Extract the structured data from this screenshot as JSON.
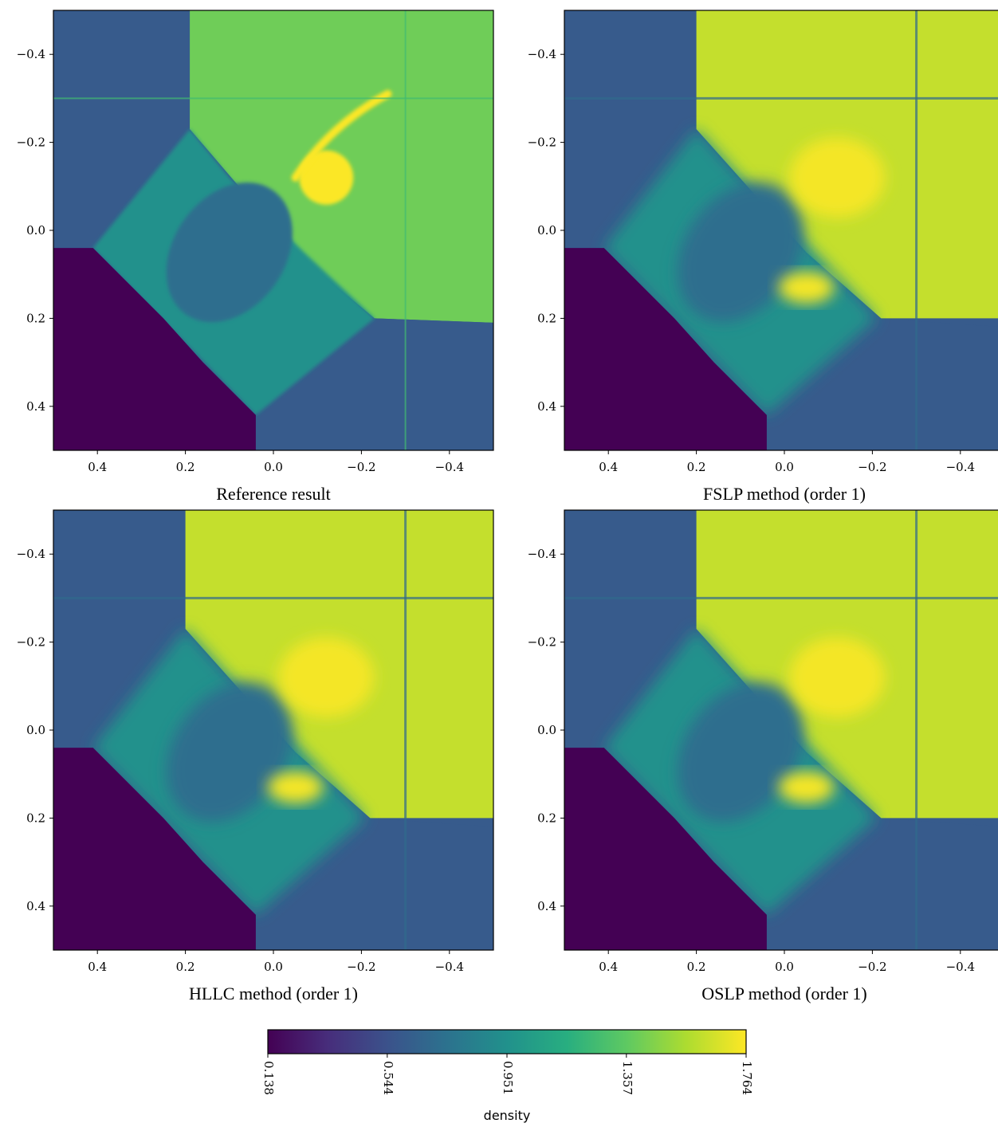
{
  "chart_data": [
    {
      "type": "heatmap",
      "title": "Reference result",
      "xlim": [
        0.5,
        -0.5
      ],
      "ylim": [
        0.5,
        -0.5
      ],
      "x_ticks": [
        "0.4",
        "0.2",
        "0.0",
        "−0.2",
        "−0.4"
      ],
      "y_ticks": [
        "−0.4",
        "−0.2",
        "0.0",
        "0.2",
        "0.4"
      ],
      "regions": [
        {
          "name": "upper-left",
          "density": 0.6
        },
        {
          "name": "upper-right",
          "density": 1.4
        },
        {
          "name": "lower-left",
          "density": 0.138
        },
        {
          "name": "lower-right",
          "density": 0.6
        },
        {
          "name": "center",
          "density": 0.95
        },
        {
          "name": "peak",
          "density": 1.76
        }
      ]
    },
    {
      "type": "heatmap",
      "title": "FSLP method (order 1)",
      "xlim": [
        0.5,
        -0.5
      ],
      "ylim": [
        0.5,
        -0.5
      ],
      "x_ticks": [
        "0.4",
        "0.2",
        "0.0",
        "−0.2",
        "−0.4"
      ],
      "y_ticks": [
        "−0.4",
        "−0.2",
        "0.0",
        "0.2",
        "0.4"
      ],
      "regions": [
        {
          "name": "upper-left",
          "density": 0.6
        },
        {
          "name": "upper-right",
          "density": 1.62
        },
        {
          "name": "lower-left",
          "density": 0.138
        },
        {
          "name": "lower-right",
          "density": 0.6
        },
        {
          "name": "center",
          "density": 0.95
        },
        {
          "name": "peak",
          "density": 1.74
        }
      ]
    },
    {
      "type": "heatmap",
      "title": "HLLC method (order 1)",
      "xlim": [
        0.5,
        -0.5
      ],
      "ylim": [
        0.5,
        -0.5
      ],
      "x_ticks": [
        "0.4",
        "0.2",
        "0.0",
        "−0.2",
        "−0.4"
      ],
      "y_ticks": [
        "−0.4",
        "−0.2",
        "0.0",
        "0.2",
        "0.4"
      ],
      "regions": [
        {
          "name": "upper-left",
          "density": 0.6
        },
        {
          "name": "upper-right",
          "density": 1.62
        },
        {
          "name": "lower-left",
          "density": 0.138
        },
        {
          "name": "lower-right",
          "density": 0.6
        },
        {
          "name": "center",
          "density": 0.95
        },
        {
          "name": "peak",
          "density": 1.74
        }
      ]
    },
    {
      "type": "heatmap",
      "title": "OSLP method (order 1)",
      "xlim": [
        0.5,
        -0.5
      ],
      "ylim": [
        0.5,
        -0.5
      ],
      "x_ticks": [
        "0.4",
        "0.2",
        "0.0",
        "−0.2",
        "−0.4"
      ],
      "y_ticks": [
        "−0.4",
        "−0.2",
        "0.0",
        "0.2",
        "0.4"
      ],
      "regions": [
        {
          "name": "upper-left",
          "density": 0.6
        },
        {
          "name": "upper-right",
          "density": 1.62
        },
        {
          "name": "lower-left",
          "density": 0.138
        },
        {
          "name": "lower-right",
          "density": 0.6
        },
        {
          "name": "center",
          "density": 0.95
        },
        {
          "name": "peak",
          "density": 1.74
        }
      ]
    }
  ],
  "colorbar": {
    "label": "density",
    "ticks": [
      "0.138",
      "0.544",
      "0.951",
      "1.357",
      "1.764"
    ],
    "range": [
      0.138,
      1.764
    ],
    "colormap": "viridis",
    "colors": [
      "#440154",
      "#3b528b",
      "#21918c",
      "#5ec962",
      "#fde725"
    ]
  }
}
